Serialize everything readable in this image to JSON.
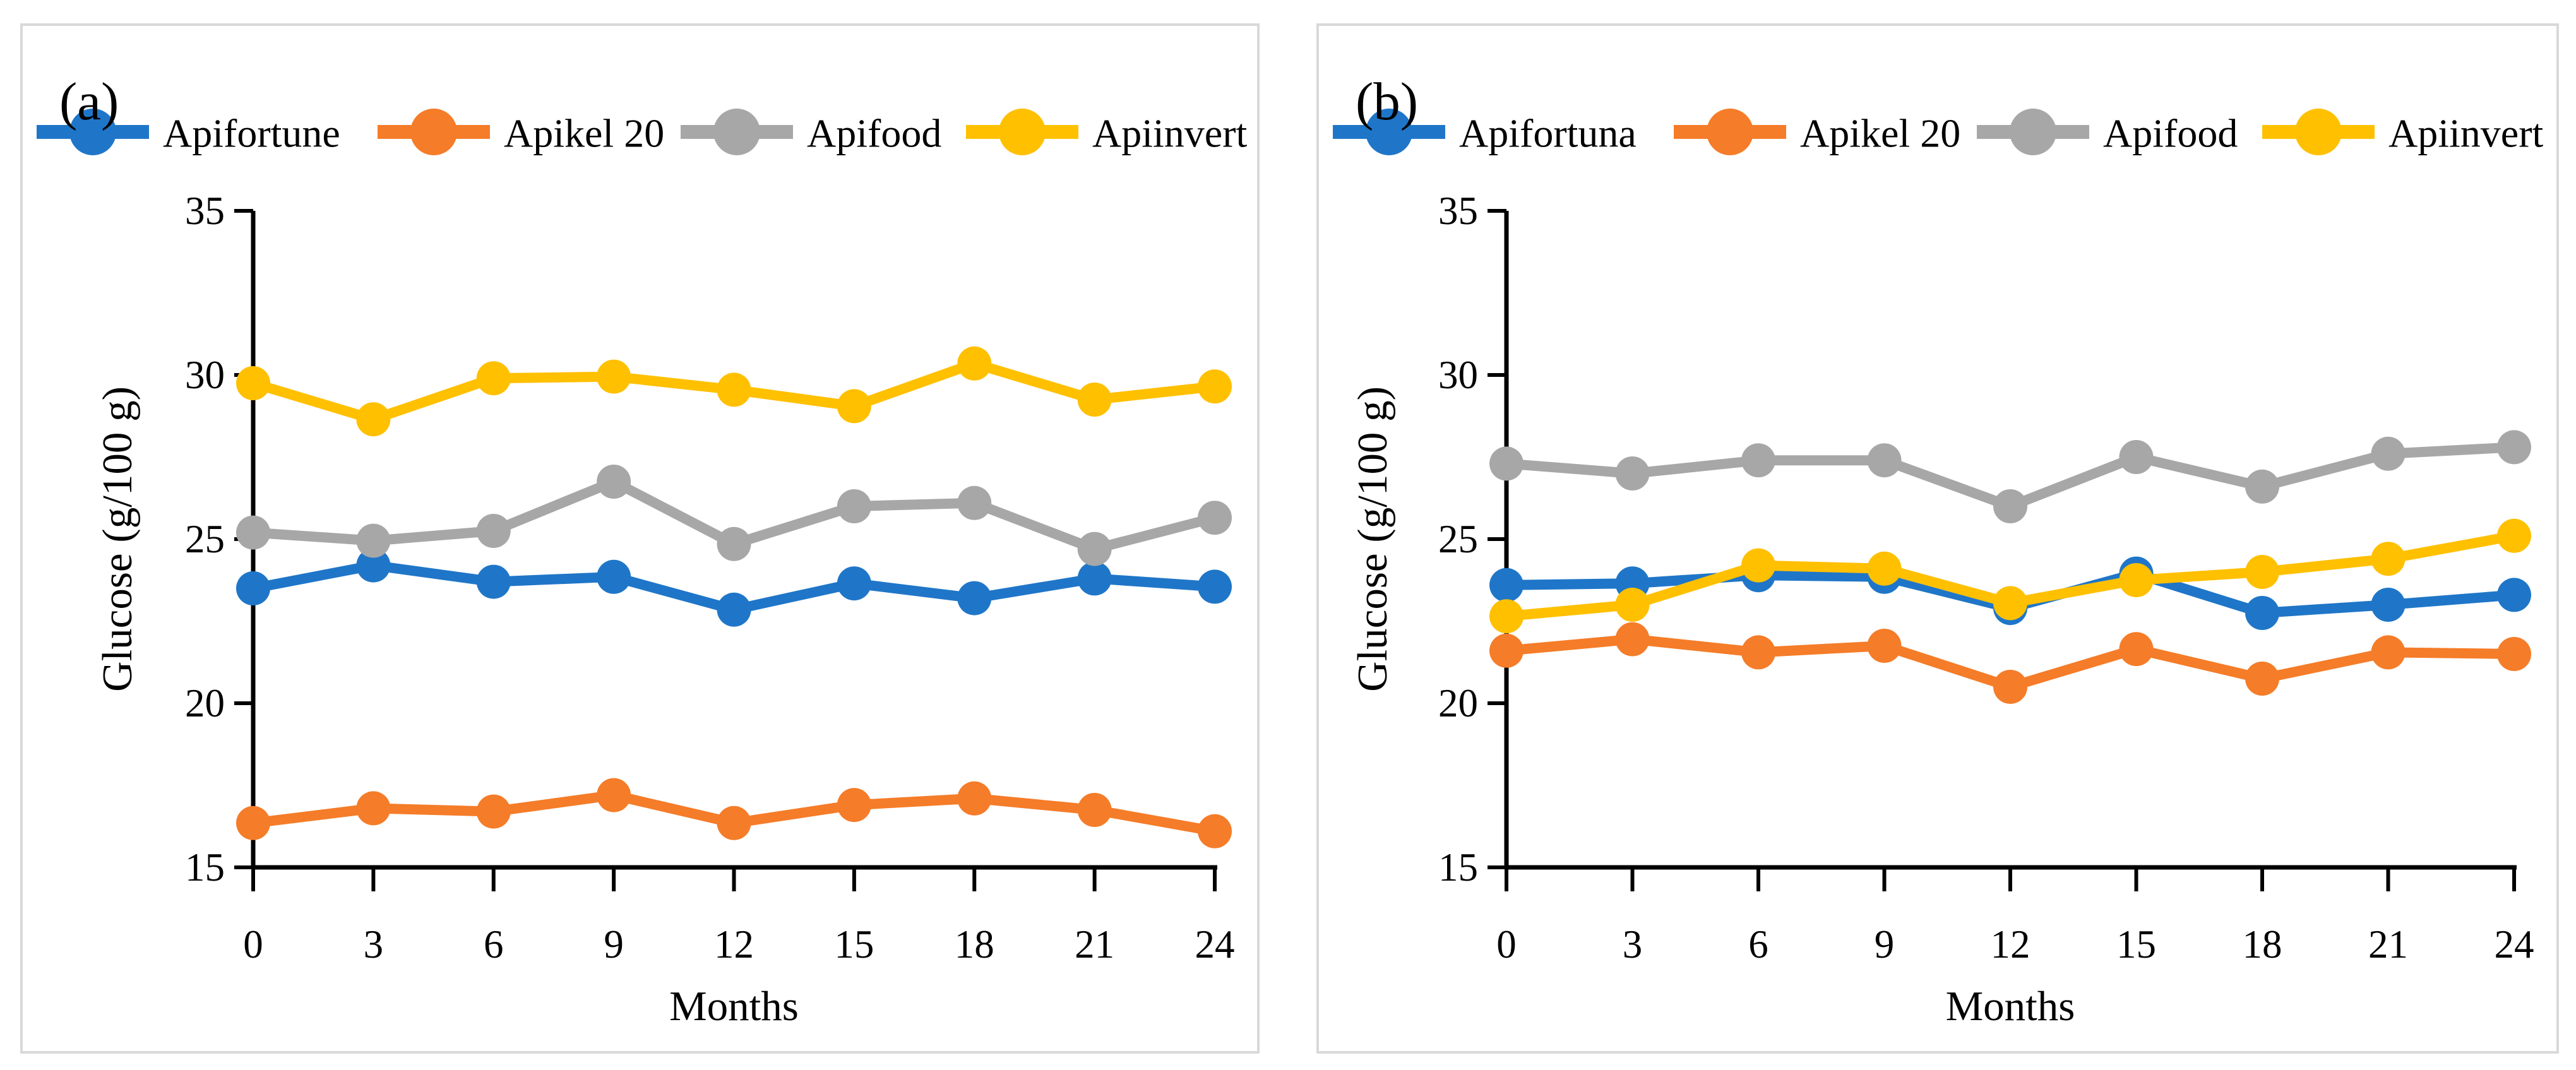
{
  "figure_background": "#ffffff",
  "panel_border_color": "#d9d9d9",
  "axis_color": "#000000",
  "chart_data": [
    {
      "type": "line",
      "panel_label": "(a)",
      "xlabel": "Months",
      "ylabel": "Glucose (g/100 g)",
      "x": [
        0,
        3,
        6,
        9,
        12,
        15,
        18,
        21,
        24
      ],
      "x_tick_labels": [
        "0",
        "3",
        "6",
        "9",
        "12",
        "15",
        "18",
        "21",
        "24"
      ],
      "y_tick_labels": [
        "15",
        "20",
        "25",
        "30",
        "35"
      ],
      "y_tick_values": [
        15,
        20,
        25,
        30,
        35
      ],
      "ylim": [
        15,
        35
      ],
      "grid": "off",
      "legend_position": "top",
      "series": [
        {
          "name": "Apifortune",
          "color": "#1f76c8",
          "values": [
            23.5,
            24.2,
            23.7,
            23.85,
            22.85,
            23.65,
            23.2,
            23.8,
            23.55
          ]
        },
        {
          "name": "Apikel 20",
          "color": "#f57c28",
          "values": [
            16.35,
            16.8,
            16.7,
            17.2,
            16.35,
            16.9,
            17.1,
            16.75,
            16.1
          ]
        },
        {
          "name": "Apifood",
          "color": "#a7a7a7",
          "values": [
            25.2,
            24.95,
            25.25,
            26.75,
            24.85,
            26.0,
            26.1,
            24.7,
            25.65
          ]
        },
        {
          "name": "Apiinvert",
          "color": "#ffc000",
          "values": [
            29.75,
            28.65,
            29.9,
            29.95,
            29.55,
            29.05,
            30.35,
            29.25,
            29.65
          ]
        }
      ]
    },
    {
      "type": "line",
      "panel_label": "(b)",
      "xlabel": "Months",
      "ylabel": "Glucose (g/100 g)",
      "x": [
        0,
        3,
        6,
        9,
        12,
        15,
        18,
        21,
        24
      ],
      "x_tick_labels": [
        "0",
        "3",
        "6",
        "9",
        "12",
        "15",
        "18",
        "21",
        "24"
      ],
      "y_tick_labels": [
        "15",
        "20",
        "25",
        "30",
        "35"
      ],
      "y_tick_values": [
        15,
        20,
        25,
        30,
        35
      ],
      "ylim": [
        15,
        35
      ],
      "grid": "off",
      "legend_position": "top",
      "series": [
        {
          "name": "Apifortuna",
          "color": "#1f76c8",
          "values": [
            23.6,
            23.65,
            23.9,
            23.85,
            22.9,
            23.95,
            22.75,
            23.0,
            23.3
          ]
        },
        {
          "name": "Apikel 20",
          "color": "#f57c28",
          "values": [
            21.6,
            21.95,
            21.55,
            21.75,
            20.5,
            21.65,
            20.75,
            21.55,
            21.5
          ]
        },
        {
          "name": "Apifood",
          "color": "#a7a7a7",
          "values": [
            27.3,
            27.0,
            27.4,
            27.4,
            26.0,
            27.5,
            26.6,
            27.6,
            27.8
          ]
        },
        {
          "name": "Apiinvert",
          "color": "#ffc000",
          "values": [
            22.65,
            23.0,
            24.2,
            24.1,
            23.05,
            23.75,
            24.0,
            24.4,
            25.1
          ]
        }
      ]
    }
  ]
}
